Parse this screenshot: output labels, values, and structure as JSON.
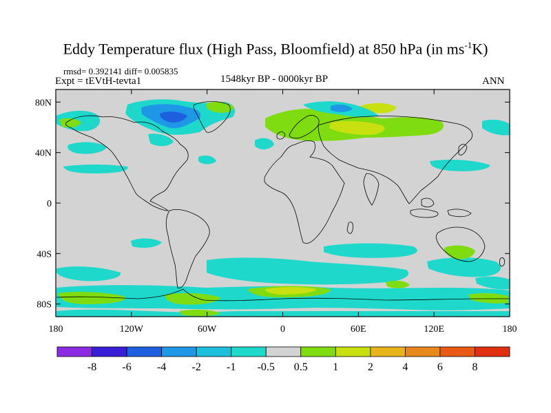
{
  "title_main": "Eddy Temperature flux (High Pass, Bloomfield) at 850 hPa (in ms",
  "title_sup": "-1",
  "title_end": "K)",
  "stats": "rmsd= 0.392141 diff= 0.005835",
  "experiment": "Expt = tEVtH-tevta1",
  "period": "1548kyr BP - 0000kyr BP",
  "season": "ANN",
  "map": {
    "lon_ticks": [
      "180",
      "120W",
      "60W",
      "0",
      "60E",
      "120E",
      "180"
    ],
    "lat_ticks": [
      "80N",
      "40N",
      "0",
      "40S",
      "80S"
    ],
    "lat_values": [
      80,
      40,
      0,
      -40,
      -80
    ],
    "lon_range": [
      -180,
      180
    ],
    "lat_range": [
      -90,
      90
    ],
    "background_color": "#d3d3d3"
  },
  "colorbar": {
    "labels": [
      "-8",
      "-6",
      "-4",
      "-2",
      "-1",
      "-0.5",
      "0.5",
      "1",
      "2",
      "4",
      "6",
      "8"
    ],
    "colors": [
      "#8b2be2",
      "#3a1fd8",
      "#1e5fe0",
      "#1d97e6",
      "#1cbfdc",
      "#1fd8cc",
      "#d3d3d3",
      "#7fdc10",
      "#c8e010",
      "#e8b41c",
      "#e8881c",
      "#e85a14",
      "#e03010"
    ]
  }
}
